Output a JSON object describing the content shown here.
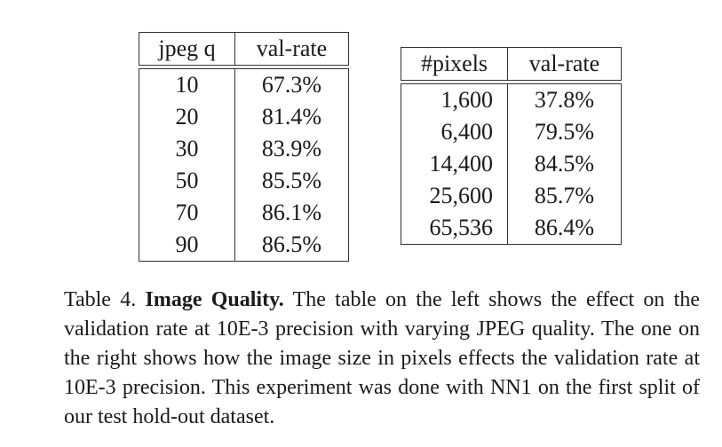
{
  "left_table": {
    "headers": [
      "jpeg q",
      "val-rate"
    ],
    "rows": [
      [
        "10",
        "67.3%"
      ],
      [
        "20",
        "81.4%"
      ],
      [
        "30",
        "83.9%"
      ],
      [
        "50",
        "85.5%"
      ],
      [
        "70",
        "86.1%"
      ],
      [
        "90",
        "86.5%"
      ]
    ]
  },
  "right_table": {
    "headers": [
      "#pixels",
      "val-rate"
    ],
    "rows": [
      [
        "1,600",
        "37.8%"
      ],
      [
        "6,400",
        "79.5%"
      ],
      [
        "14,400",
        "84.5%"
      ],
      [
        "25,600",
        "85.7%"
      ],
      [
        "65,536",
        "86.4%"
      ]
    ]
  },
  "caption": {
    "label": "Table 4.",
    "title": "Image Quality.",
    "text": "The table on the left shows the effect on the validation rate at 10E-3 precision with varying JPEG quality. The one on the right shows how the image size in pixels effects the validation rate at 10E-3 precision. This experiment was done with NN1 on the first split of our test hold-out dataset."
  }
}
